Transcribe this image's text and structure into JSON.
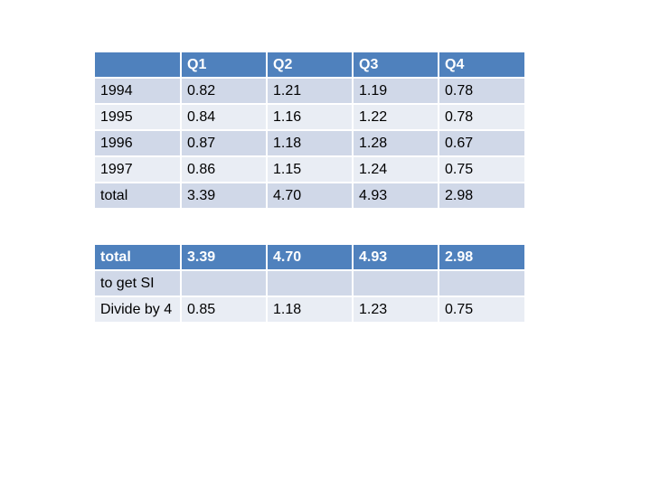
{
  "main_table": {
    "headers": [
      "",
      "Q1",
      "Q2",
      "Q3",
      "Q4"
    ],
    "rows": [
      [
        "1994",
        "0.82",
        "1.21",
        "1.19",
        "0.78"
      ],
      [
        "1995",
        "0.84",
        "1.16",
        "1.22",
        "0.78"
      ],
      [
        "1996",
        "0.87",
        "1.18",
        "1.28",
        "0.67"
      ],
      [
        "1997",
        "0.86",
        "1.15",
        "1.24",
        "0.75"
      ],
      [
        "total",
        "3.39",
        "4.70",
        "4.93",
        "2.98"
      ]
    ]
  },
  "si_table": {
    "header": [
      "total",
      "3.39",
      "4.70",
      "4.93",
      "2.98"
    ],
    "rows": [
      [
        "to get SI",
        "",
        "",
        "",
        ""
      ],
      [
        "Divide by 4",
        "0.85",
        "1.18",
        "1.23",
        "0.75"
      ]
    ]
  },
  "colors": {
    "header_blue": "#4f81bd",
    "row_dark": "#d0d8e8",
    "row_light": "#e9edf4"
  }
}
